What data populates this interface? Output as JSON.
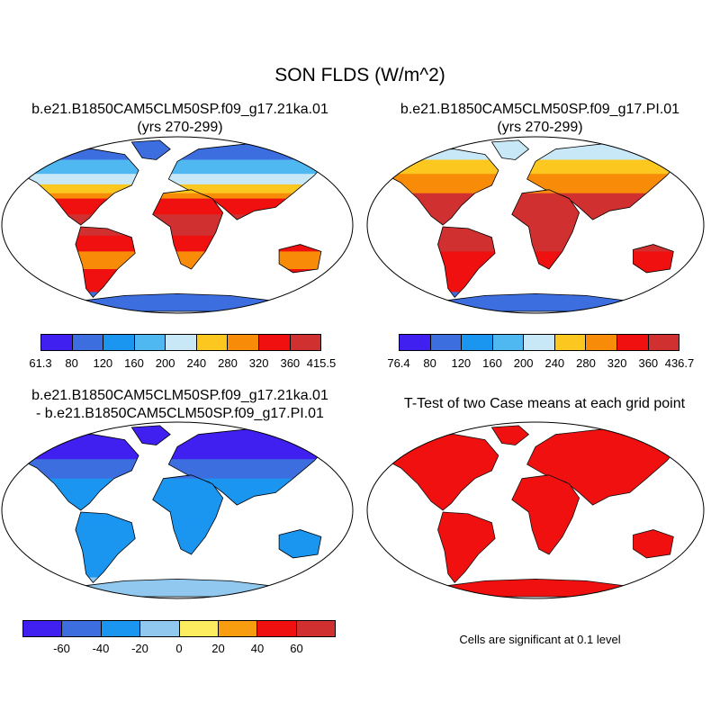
{
  "title": "SON FLDS (W/m^2)",
  "panels": {
    "top_left": {
      "title_line1": "b.e21.B1850CAM5CLM50SP.f09_g17.21ka.01",
      "title_line2": "(yrs 270-299)",
      "field": "case1"
    },
    "top_right": {
      "title_line1": "b.e21.B1850CAM5CLM50SP.f09_g17.PI.01",
      "title_line2": "(yrs 270-299)",
      "field": "case2"
    },
    "bottom_left": {
      "title_line1": "b.e21.B1850CAM5CLM50SP.f09_g17.21ka.01",
      "title_line2": "- b.e21.B1850CAM5CLM50SP.f09_g17.PI.01",
      "field": "diff"
    },
    "bottom_right": {
      "title_line1": "T-Test of two Case means at each grid point",
      "field": "ttest",
      "note": "Cells are significant at 0.1 level"
    }
  },
  "colorbars": {
    "case1": {
      "labels": [
        "61.3",
        "80",
        "120",
        "160",
        "200",
        "240",
        "280",
        "320",
        "360",
        "415.5"
      ],
      "colors": [
        "#4020f0",
        "#3d6ee0",
        "#1a95f0",
        "#50b8f0",
        "#c8e8f8",
        "#fcc820",
        "#f88c08",
        "#f01010",
        "#d03030"
      ]
    },
    "case2": {
      "labels": [
        "76.4",
        "80",
        "120",
        "160",
        "200",
        "240",
        "280",
        "320",
        "360",
        "436.7"
      ],
      "colors": [
        "#4020f0",
        "#3d6ee0",
        "#1a95f0",
        "#50b8f0",
        "#c8e8f8",
        "#fcc820",
        "#f88c08",
        "#f01010",
        "#d03030"
      ]
    },
    "diff": {
      "labels": [
        "-60",
        "-40",
        "-20",
        "0",
        "20",
        "40",
        "60"
      ],
      "colors": [
        "#4020f0",
        "#3d6ee0",
        "#1a95f0",
        "#90c8f0",
        "#fcec60",
        "#f89c10",
        "#f01010",
        "#d03030"
      ]
    }
  },
  "colors": {
    "ocean": "#ffffff",
    "outline": "#000000",
    "ttest_land": "#f01010",
    "ttest_coast": "#101010"
  }
}
